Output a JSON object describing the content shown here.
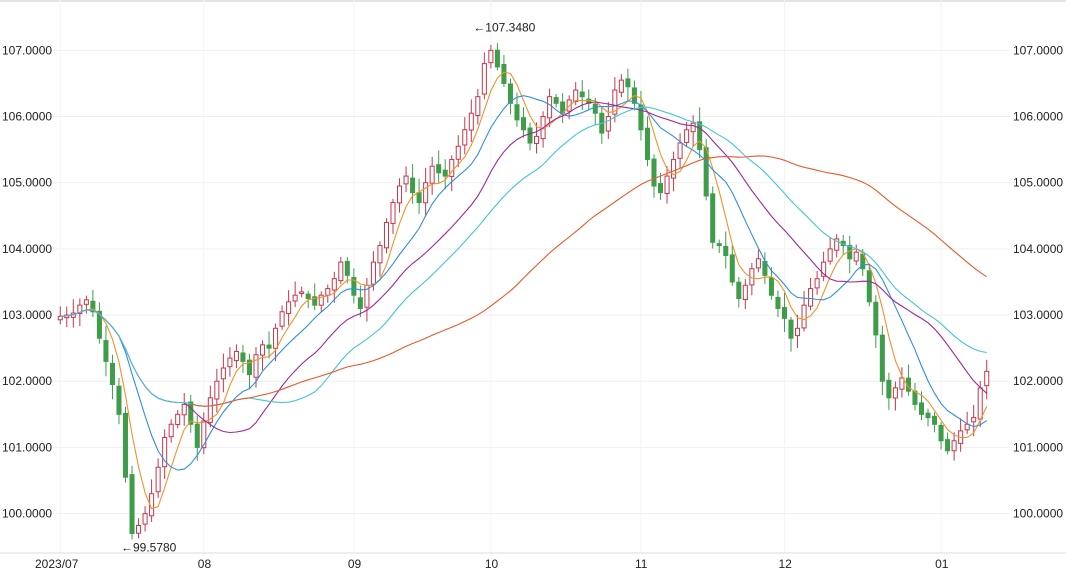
{
  "chart_data": {
    "type": "candlestick",
    "x_tick_labels": [
      "2023/07",
      "08",
      "09",
      "10",
      "11",
      "12",
      "01"
    ],
    "y_tick_labels": [
      "100.0000",
      "101.0000",
      "102.0000",
      "103.0000",
      "104.0000",
      "105.0000",
      "106.0000",
      "107.0000"
    ],
    "y_ticks": [
      100,
      101,
      102,
      103,
      104,
      105,
      106,
      107
    ],
    "ylim": [
      99.45,
      107.64
    ],
    "grid": true,
    "annotations": [
      {
        "text": "←107.3480",
        "value": 107.348,
        "index": 63
      },
      {
        "text": "←99.5780",
        "value": 99.578,
        "index": 9
      }
    ],
    "close": [
      102.98,
      103.0,
      103.03,
      103.15,
      103.23,
      103.05,
      102.65,
      102.3,
      101.95,
      101.5,
      100.55,
      99.7,
      99.82,
      100.0,
      100.3,
      100.7,
      101.15,
      101.35,
      101.5,
      101.65,
      101.35,
      101.0,
      101.4,
      101.75,
      102.0,
      102.2,
      102.35,
      102.45,
      102.3,
      102.1,
      102.4,
      102.55,
      102.5,
      102.8,
      103.05,
      103.2,
      103.3,
      103.35,
      103.25,
      103.15,
      103.3,
      103.4,
      103.55,
      103.8,
      103.6,
      103.3,
      103.1,
      103.45,
      103.8,
      104.05,
      104.4,
      104.7,
      104.95,
      105.1,
      104.85,
      104.7,
      105.0,
      105.25,
      105.15,
      105.1,
      105.35,
      105.55,
      105.8,
      106.05,
      106.3,
      106.8,
      107.0,
      106.75,
      106.5,
      106.2,
      105.95,
      105.8,
      105.6,
      105.7,
      106.0,
      106.3,
      106.2,
      106.05,
      106.25,
      106.4,
      106.3,
      106.2,
      106.05,
      105.75,
      106.0,
      106.4,
      106.55,
      106.45,
      106.2,
      105.8,
      105.35,
      104.95,
      104.85,
      105.1,
      105.35,
      105.6,
      105.8,
      105.9,
      105.5,
      104.8,
      104.1,
      104.05,
      103.9,
      103.5,
      103.25,
      103.45,
      103.7,
      103.85,
      103.6,
      103.3,
      103.1,
      102.95,
      102.65,
      102.8,
      103.15,
      103.4,
      103.55,
      103.8,
      104.0,
      104.15,
      104.05,
      103.85,
      103.95,
      103.7,
      103.2,
      102.7,
      102.0,
      101.75,
      101.9,
      102.05,
      101.85,
      101.65,
      101.5,
      101.45,
      101.35,
      101.1,
      100.95,
      101.1,
      101.25,
      101.35,
      101.45,
      101.9,
      102.15
    ],
    "series": [
      {
        "period": 5,
        "color": "#f0932b"
      },
      {
        "period": 10,
        "color": "#2f8fe0"
      },
      {
        "period": 20,
        "color": "#a0289a"
      },
      {
        "period": 30,
        "color": "#45c3d9"
      },
      {
        "period": 60,
        "color": "#e85a2a"
      }
    ],
    "up_color": "#c7364a",
    "down_color": "#3f9d4a"
  }
}
